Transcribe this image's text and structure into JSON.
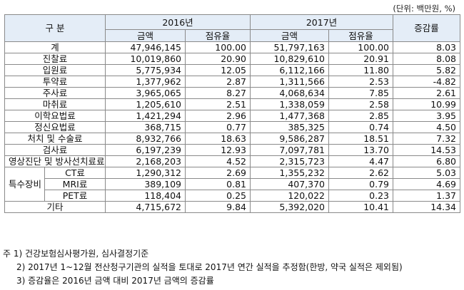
{
  "unit_text": "(단위: 백만원, %)",
  "header": {
    "category": "구 분",
    "year1": "2016년",
    "year2": "2017년",
    "change": "증감률",
    "amount": "금액",
    "share": "점유율"
  },
  "rows": [
    {
      "label": "계",
      "a16": "47,946,145",
      "s16": "100.00",
      "a17": "51,797,163",
      "s17": "100.00",
      "chg": "8.03"
    },
    {
      "label": "진찰료",
      "a16": "10,019,860",
      "s16": "20.90",
      "a17": "10,829,610",
      "s17": "20.91",
      "chg": "8.08"
    },
    {
      "label": "입원료",
      "a16": "5,775,934",
      "s16": "12.05",
      "a17": "6,112,166",
      "s17": "11.80",
      "chg": "5.82"
    },
    {
      "label": "투약료",
      "a16": "1,377,962",
      "s16": "2.87",
      "a17": "1,311,566",
      "s17": "2.53",
      "chg": "-4.82"
    },
    {
      "label": "주사료",
      "a16": "3,965,065",
      "s16": "8.27",
      "a17": "4,068,634",
      "s17": "7.85",
      "chg": "2.61"
    },
    {
      "label": "마취료",
      "a16": "1,205,610",
      "s16": "2.51",
      "a17": "1,338,059",
      "s17": "2.58",
      "chg": "10.99"
    },
    {
      "label": "이학요법료",
      "a16": "1,421,294",
      "s16": "2.96",
      "a17": "1,477,368",
      "s17": "2.85",
      "chg": "3.95"
    },
    {
      "label": "정신요법료",
      "a16": "368,715",
      "s16": "0.77",
      "a17": "385,325",
      "s17": "0.74",
      "chg": "4.50"
    },
    {
      "label": "처치 및 수술료",
      "a16": "8,932,766",
      "s16": "18.63",
      "a17": "9,586,287",
      "s17": "18.51",
      "chg": "7.32"
    },
    {
      "label": "검사료",
      "a16": "6,197,239",
      "s16": "12.93",
      "a17": "7,097,781",
      "s17": "13.70",
      "chg": "14.53"
    },
    {
      "label": "영상진단 및 방사선치료료",
      "a16": "2,168,203",
      "s16": "4.52",
      "a17": "2,315,723",
      "s17": "4.47",
      "chg": "6.80"
    }
  ],
  "special": {
    "label": "특수장비",
    "items": [
      {
        "label": "CT료",
        "a16": "1,290,312",
        "s16": "2.69",
        "a17": "1,355,232",
        "s17": "2.62",
        "chg": "5.03"
      },
      {
        "label": "MRI료",
        "a16": "389,109",
        "s16": "0.81",
        "a17": "407,370",
        "s17": "0.79",
        "chg": "4.69"
      },
      {
        "label": "PET료",
        "a16": "118,404",
        "s16": "0.25",
        "a17": "120,022",
        "s17": "0.23",
        "chg": "1.37"
      }
    ]
  },
  "other": {
    "label": "기타",
    "a16": "4,715,672",
    "s16": "9.84",
    "a17": "5,392,020",
    "s17": "10.41",
    "chg": "14.34"
  },
  "notes": [
    "주 1) 건강보험심사평가원, 심사결정기준",
    "2) 2017년 1~12월 전산청구기관의 실적을 토대로 2017년 연간 실적을 추정함(한방, 약국 실적은 제외됨)",
    "3) 증감율은 2016년 금액 대비 2017년 금액의 증감률"
  ]
}
